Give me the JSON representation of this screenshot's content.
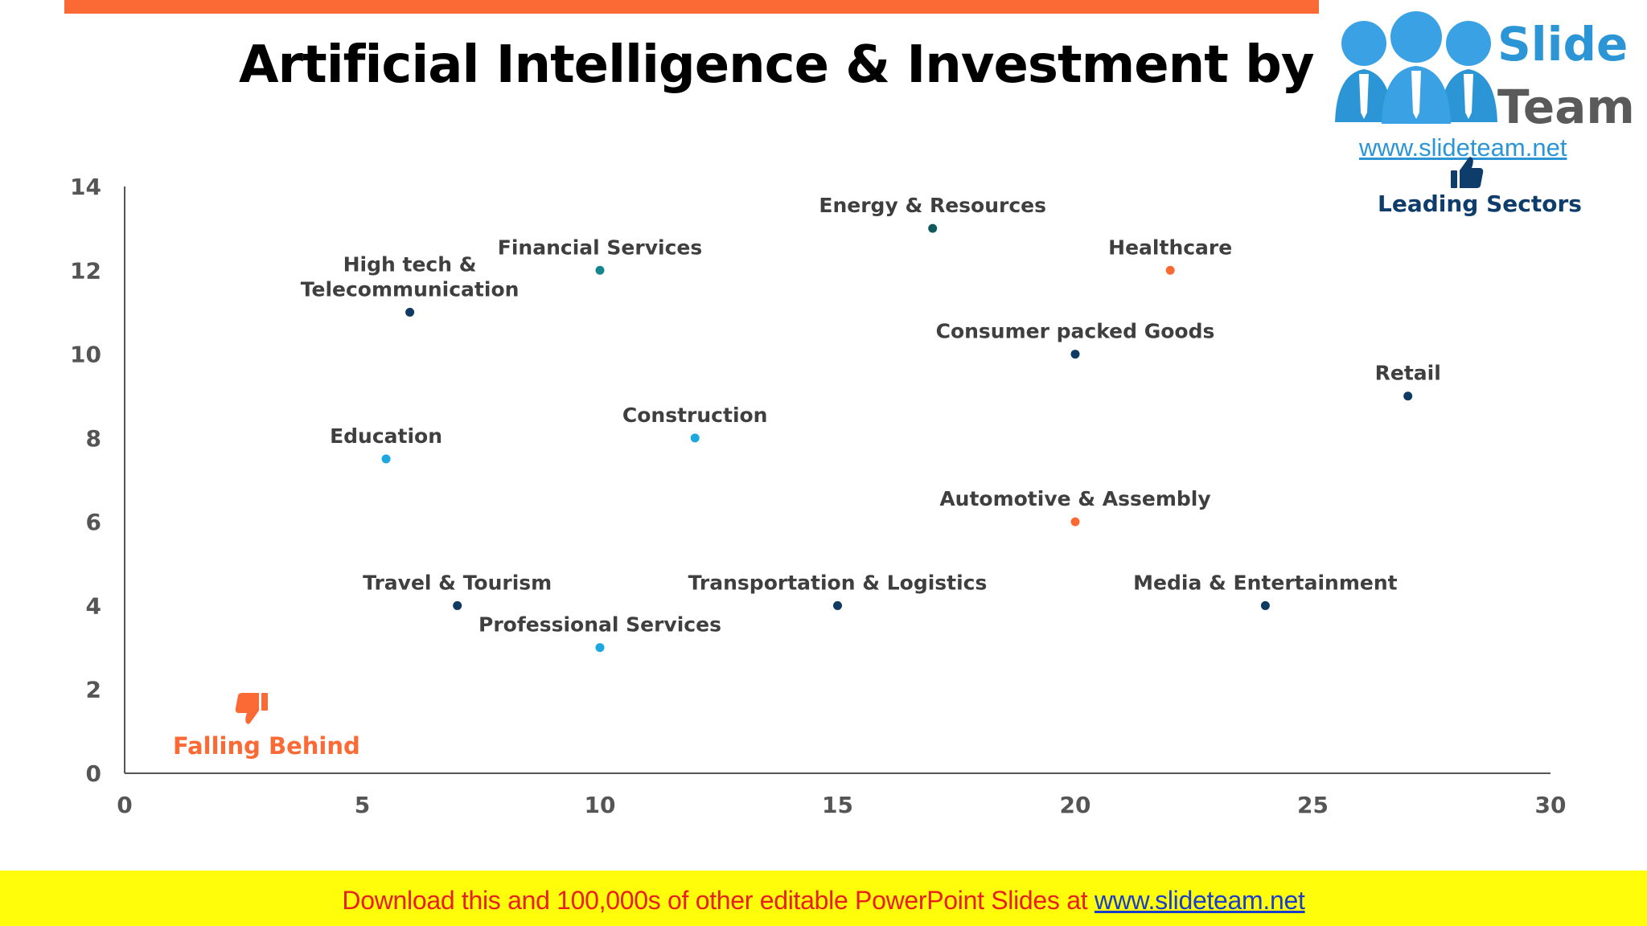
{
  "slide": {
    "title": "Artificial Intelligence & Investment by Sector"
  },
  "logo": {
    "word1": "Slide",
    "word2": "Team",
    "url": "www.slideteam.net"
  },
  "annotations": {
    "leading": "Leading Sectors",
    "falling": "Falling Behind",
    "leading_color": "#0e3d6b",
    "falling_color": "#fb6a35"
  },
  "footer": {
    "text": "Download this and 100,000s of other editable PowerPoint Slides at ",
    "link": "www.slideteam.net"
  },
  "chart_data": {
    "type": "scatter",
    "xlim": [
      0,
      30
    ],
    "ylim": [
      0,
      14
    ],
    "x_ticks": [
      0,
      5,
      10,
      15,
      20,
      25,
      30
    ],
    "y_ticks": [
      0,
      2,
      4,
      6,
      8,
      10,
      12,
      14
    ],
    "grid": false,
    "points": [
      {
        "label": [
          "High tech &",
          "Telecommunication"
        ],
        "x": 6,
        "y": 11,
        "color": "#0e3a63"
      },
      {
        "label": [
          "Financial Services"
        ],
        "x": 10,
        "y": 12,
        "color": "#14878e"
      },
      {
        "label": [
          "Energy & Resources"
        ],
        "x": 17,
        "y": 13,
        "color": "#0f5a5c"
      },
      {
        "label": [
          "Healthcare"
        ],
        "x": 22,
        "y": 12,
        "color": "#fb6a35"
      },
      {
        "label": [
          "Consumer packed Goods"
        ],
        "x": 20,
        "y": 10,
        "color": "#0e3a63"
      },
      {
        "label": [
          "Retail"
        ],
        "x": 27,
        "y": 9,
        "color": "#0e3a63"
      },
      {
        "label": [
          "Education"
        ],
        "x": 5.5,
        "y": 7.5,
        "color": "#1ba8e0"
      },
      {
        "label": [
          "Construction"
        ],
        "x": 12,
        "y": 8,
        "color": "#1ba8e0"
      },
      {
        "label": [
          "Automotive & Assembly"
        ],
        "x": 20,
        "y": 6,
        "color": "#fb6a35"
      },
      {
        "label": [
          "Travel & Tourism"
        ],
        "x": 7,
        "y": 4,
        "color": "#0e3a63"
      },
      {
        "label": [
          "Transportation & Logistics"
        ],
        "x": 15,
        "y": 4,
        "color": "#0e3a63"
      },
      {
        "label": [
          "Media & Entertainment"
        ],
        "x": 24,
        "y": 4,
        "color": "#0e3a63"
      },
      {
        "label": [
          "Professional Services"
        ],
        "x": 10,
        "y": 3,
        "color": "#1ba8e0"
      }
    ]
  }
}
